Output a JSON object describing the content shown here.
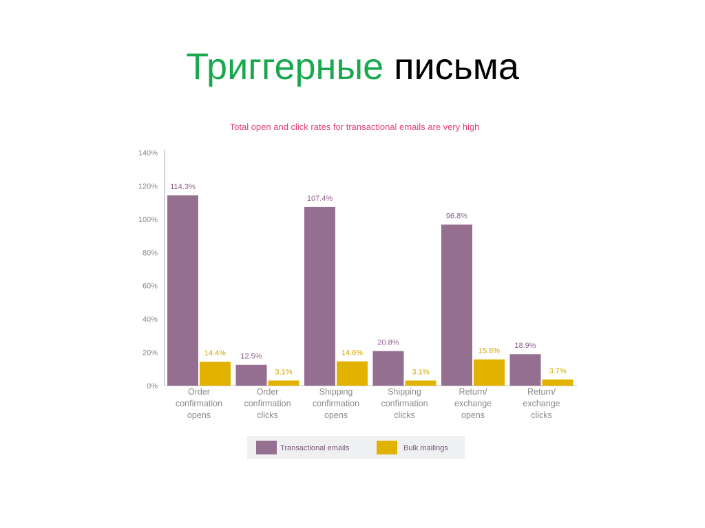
{
  "slide": {
    "title_part1": "Триггерные",
    "title_part2": "письма"
  },
  "colors": {
    "title_accent": "#1aa84f",
    "transactional": "#956f8f",
    "bulk": "#e2b200",
    "chart_title": "#e0407a",
    "transactional_label": "#8e5c8a",
    "bulk_label": "#d4a900"
  },
  "chart_data": {
    "type": "bar",
    "title": "Total open and click rates for transactional emails are very high",
    "categories": [
      [
        "Order",
        "confirmation",
        "opens"
      ],
      [
        "Order",
        "confirmation",
        "clicks"
      ],
      [
        "Shipping",
        "confirmation",
        "opens"
      ],
      [
        "Shipping",
        "confirmation",
        "clicks"
      ],
      [
        "Return/",
        "exchange",
        "opens"
      ],
      [
        "Return/",
        "exchange",
        "clicks"
      ]
    ],
    "series": [
      {
        "name": "Transactional emails",
        "values": [
          114.3,
          12.5,
          107.4,
          20.8,
          96.8,
          18.9
        ],
        "labels": [
          "114.3%",
          "12.5%",
          "107.4%",
          "20.8%",
          "96.8%",
          "18.9%"
        ]
      },
      {
        "name": "Bulk mailings",
        "values": [
          14.4,
          3.1,
          14.6,
          3.1,
          15.8,
          3.7
        ],
        "labels": [
          "14.4%",
          "3.1%",
          "14.6%",
          "3.1%",
          "15.8%",
          "3.7%"
        ]
      }
    ],
    "yticks": [
      "0%",
      "20%",
      "40%",
      "60%",
      "80%",
      "100%",
      "120%",
      "140%"
    ],
    "ylim": [
      0,
      140
    ],
    "grid": false,
    "legend_position": "bottom"
  }
}
